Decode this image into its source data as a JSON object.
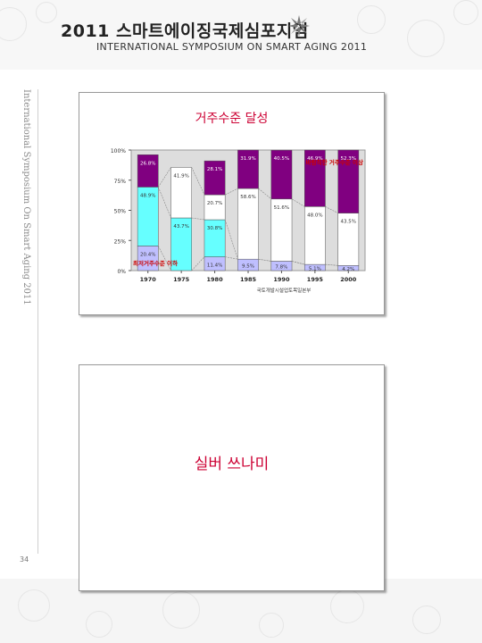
{
  "header": {
    "title": "2011 스마트에이징국제심포지엄",
    "subtitle": "INTERNATIONAL SYMPOSIUM ON SMART AGING 2011"
  },
  "sidebar": {
    "vertical_text": "International Symposium On Smart Aging 2011",
    "page_number": "34"
  },
  "slides": [
    {
      "title": "거주수준 달성"
    },
    {
      "title": "실버 쓰나미"
    }
  ],
  "colors": {
    "slide_title": "#cc0033",
    "series_bottom": "#bfbfff",
    "series_cyan": "#66ffff",
    "series_white": "#ffffff",
    "series_purple": "#800080"
  },
  "chart_data": {
    "type": "bar",
    "stacked": true,
    "categories": [
      "1970",
      "1975",
      "1980",
      "1985",
      "1990",
      "1995",
      "2000"
    ],
    "ylim": [
      0,
      100
    ],
    "yticks": [
      "0%",
      "25%",
      "50%",
      "75%",
      "100%"
    ],
    "series": [
      {
        "values": [
          20.4,
          0,
          11.4,
          9.5,
          7.8,
          5.1,
          4.2
        ]
      },
      {
        "values": [
          48.9,
          43.7,
          30.8,
          0,
          0,
          0,
          0
        ]
      },
      {
        "values": [
          0,
          41.9,
          20.7,
          58.6,
          51.6,
          48.0,
          43.5
        ]
      },
      {
        "values": [
          26.8,
          0,
          28.1,
          31.9,
          40.5,
          46.9,
          52.3
        ]
      }
    ],
    "data_labels": [
      [
        "20.4%",
        "",
        "11.4%",
        "9.5%",
        "7.8%",
        "5.1%",
        "4.2%"
      ],
      [
        "48.9%",
        "43.7%",
        "30.8%",
        "",
        "",
        "",
        ""
      ],
      [
        "",
        "41.9%",
        "20.7%",
        "58.6%",
        "51.6%",
        "48.0%",
        "43.5%"
      ],
      [
        "26.8%",
        "",
        "28.1%",
        "31.9%",
        "40.5%",
        "46.9%",
        "52.3%"
      ]
    ],
    "annotations": {
      "top_right": "바람직한 거주수준 이상",
      "bottom_left": "최저거주수준 이하",
      "source": "국토개발시설업토목일본부"
    }
  }
}
